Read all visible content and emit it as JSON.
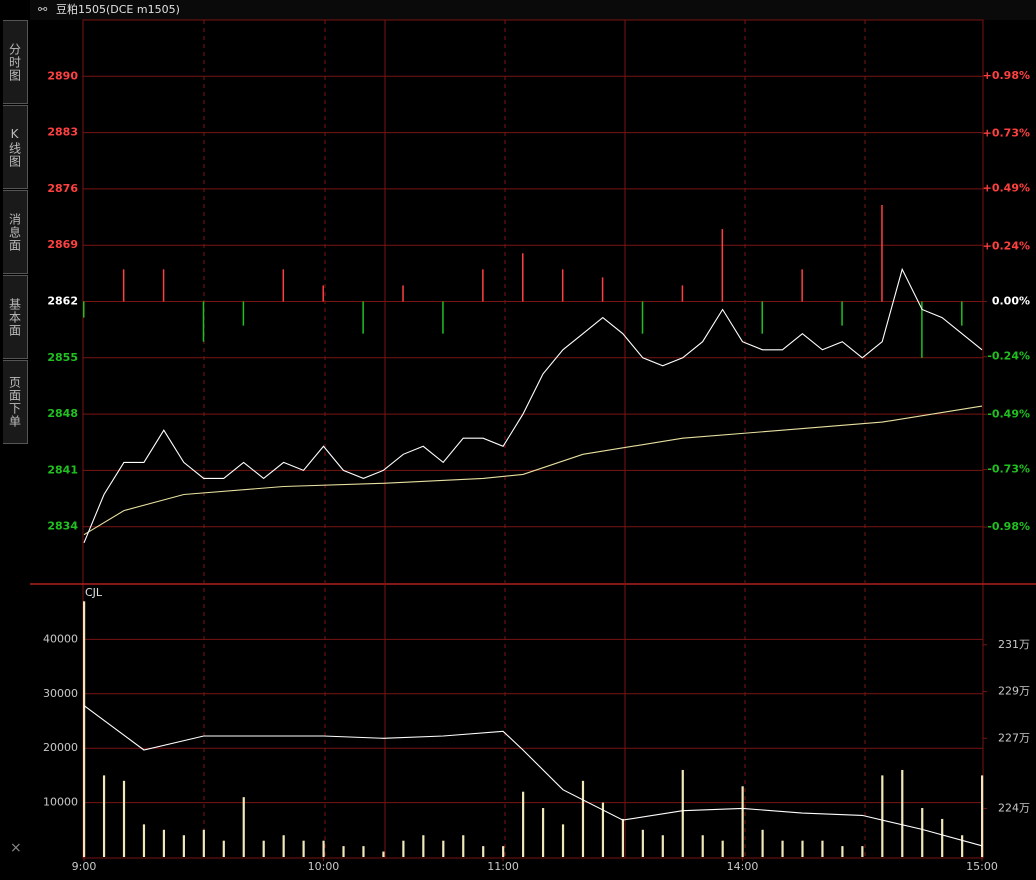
{
  "header": {
    "title": "豆粕1505(DCE m1505)"
  },
  "tabs": [
    "分时图",
    "K线图",
    "消息面",
    "基本面",
    "页面下单"
  ],
  "close": "×",
  "chart_data": [
    {
      "type": "line",
      "xlim": [
        0,
        225
      ],
      "ylim": [
        2827,
        2897
      ],
      "y2lim": [
        -1.223,
        1.223
      ],
      "yticks": [
        2890,
        2883,
        2876,
        2869,
        2862,
        2855,
        2848,
        2841,
        2834
      ],
      "y2ticks": [
        {
          "value": 0.98,
          "label": "+0.98%"
        },
        {
          "value": 0.73,
          "label": "+0.73%"
        },
        {
          "value": 0.49,
          "label": "+0.49%"
        },
        {
          "value": 0.24,
          "label": "+0.24%"
        },
        {
          "value": 0,
          "label": "0.00%"
        },
        {
          "value": -0.24,
          "label": "-0.24%"
        },
        {
          "value": -0.49,
          "label": "-0.49%"
        },
        {
          "value": -0.73,
          "label": "-0.73%"
        },
        {
          "value": -0.98,
          "label": "-0.98%"
        }
      ],
      "up_color": "#ff4040",
      "down_color": "#20c020",
      "flat_color": "#ffffff",
      "grid": true,
      "series": [
        {
          "type": "bar",
          "up_color": "#ff4040",
          "down_color": "#20c020",
          "x": [
            0,
            10,
            20,
            30,
            40,
            50,
            60,
            70,
            80,
            90,
            100,
            110,
            120,
            130,
            140,
            150,
            160,
            170,
            180,
            190,
            200,
            210,
            220
          ],
          "values": [
            2860,
            2866,
            2866,
            2857,
            2859,
            2866,
            2864,
            2858,
            2864,
            2858,
            2866,
            2868,
            2866,
            2865,
            2858,
            2864,
            2871,
            2858,
            2866,
            2859,
            2874,
            2855,
            2859
          ]
        },
        {
          "type": "line",
          "color": "#e8e0a0",
          "x": [
            0,
            10,
            25,
            50,
            75,
            100,
            110,
            125,
            150,
            175,
            200,
            225
          ],
          "values": [
            2833,
            2836,
            2838,
            2839,
            2839.4,
            2840,
            2840.5,
            2843,
            2845,
            2846,
            2847,
            2849
          ]
        },
        {
          "type": "line",
          "color": "#ffffff",
          "x": [
            0,
            5,
            10,
            15,
            20,
            25,
            30,
            35,
            40,
            45,
            50,
            55,
            60,
            65,
            70,
            75,
            80,
            85,
            90,
            95,
            100,
            105,
            110,
            115,
            120,
            125,
            130,
            135,
            140,
            145,
            150,
            155,
            160,
            165,
            170,
            175,
            180,
            185,
            190,
            195,
            200,
            205,
            210,
            215,
            220,
            225
          ],
          "values": [
            2832,
            2838,
            2842,
            2842,
            2846,
            2842,
            2840,
            2840,
            2842,
            2840,
            2842,
            2841,
            2844,
            2841,
            2840,
            2841,
            2843,
            2844,
            2842,
            2845,
            2845,
            2844,
            2848,
            2853,
            2856,
            2858,
            2860,
            2858,
            2855,
            2854,
            2855,
            2857,
            2861,
            2857,
            2856,
            2856,
            2858,
            2856,
            2857,
            2855,
            2857,
            2866,
            2861,
            2860,
            2858,
            2856
          ]
        }
      ]
    },
    {
      "type": "bar",
      "label": "CJL",
      "xlim": [
        0,
        225
      ],
      "ylim": [
        0,
        50000
      ],
      "y2lim": [
        2219200,
        2335600
      ],
      "yticks": [
        40000,
        30000,
        20000,
        10000
      ],
      "y2ticks": [
        {
          "value": 2310000,
          "label": "231万"
        },
        {
          "value": 2290000,
          "label": "229万"
        },
        {
          "value": 2270000,
          "label": "227万"
        },
        {
          "value": 2240000,
          "label": "224万"
        }
      ],
      "xticks": [
        {
          "value": 0,
          "label": "9:00"
        },
        {
          "value": 60,
          "label": "10:00"
        },
        {
          "value": 105,
          "label": "11:00"
        },
        {
          "value": 165,
          "label": "14:00"
        },
        {
          "value": 225,
          "label": "15:00"
        }
      ],
      "grid": true,
      "series": [
        {
          "type": "bar",
          "color": "#f0e8b8",
          "x": [
            0,
            5,
            10,
            15,
            20,
            25,
            30,
            35,
            40,
            45,
            50,
            55,
            60,
            65,
            70,
            75,
            80,
            85,
            90,
            95,
            100,
            105,
            110,
            115,
            120,
            125,
            130,
            135,
            140,
            145,
            150,
            155,
            160,
            165,
            170,
            175,
            180,
            185,
            190,
            195,
            200,
            205,
            210,
            215,
            220,
            225
          ],
          "values": [
            47000,
            15000,
            14000,
            6000,
            5000,
            4000,
            5000,
            3000,
            11000,
            3000,
            4000,
            3000,
            3000,
            2000,
            2000,
            1000,
            3000,
            4000,
            3000,
            4000,
            2000,
            2000,
            12000,
            9000,
            6000,
            14000,
            10000,
            7000,
            5000,
            4000,
            16000,
            4000,
            3000,
            13000,
            5000,
            3000,
            3000,
            3000,
            2000,
            2000,
            15000,
            16000,
            9000,
            7000,
            4000,
            15000
          ]
        },
        {
          "type": "line",
          "color": "#ffffff",
          "axis": "y2",
          "x": [
            0,
            15,
            30,
            45,
            60,
            75,
            90,
            105,
            110,
            120,
            135,
            150,
            165,
            180,
            195,
            210,
            225
          ],
          "values": [
            2284000,
            2265000,
            2271000,
            2271000,
            2271000,
            2270000,
            2271000,
            2273000,
            2265000,
            2248000,
            2235000,
            2239000,
            2240000,
            2238000,
            2237000,
            2231000,
            2224000
          ]
        }
      ]
    }
  ]
}
